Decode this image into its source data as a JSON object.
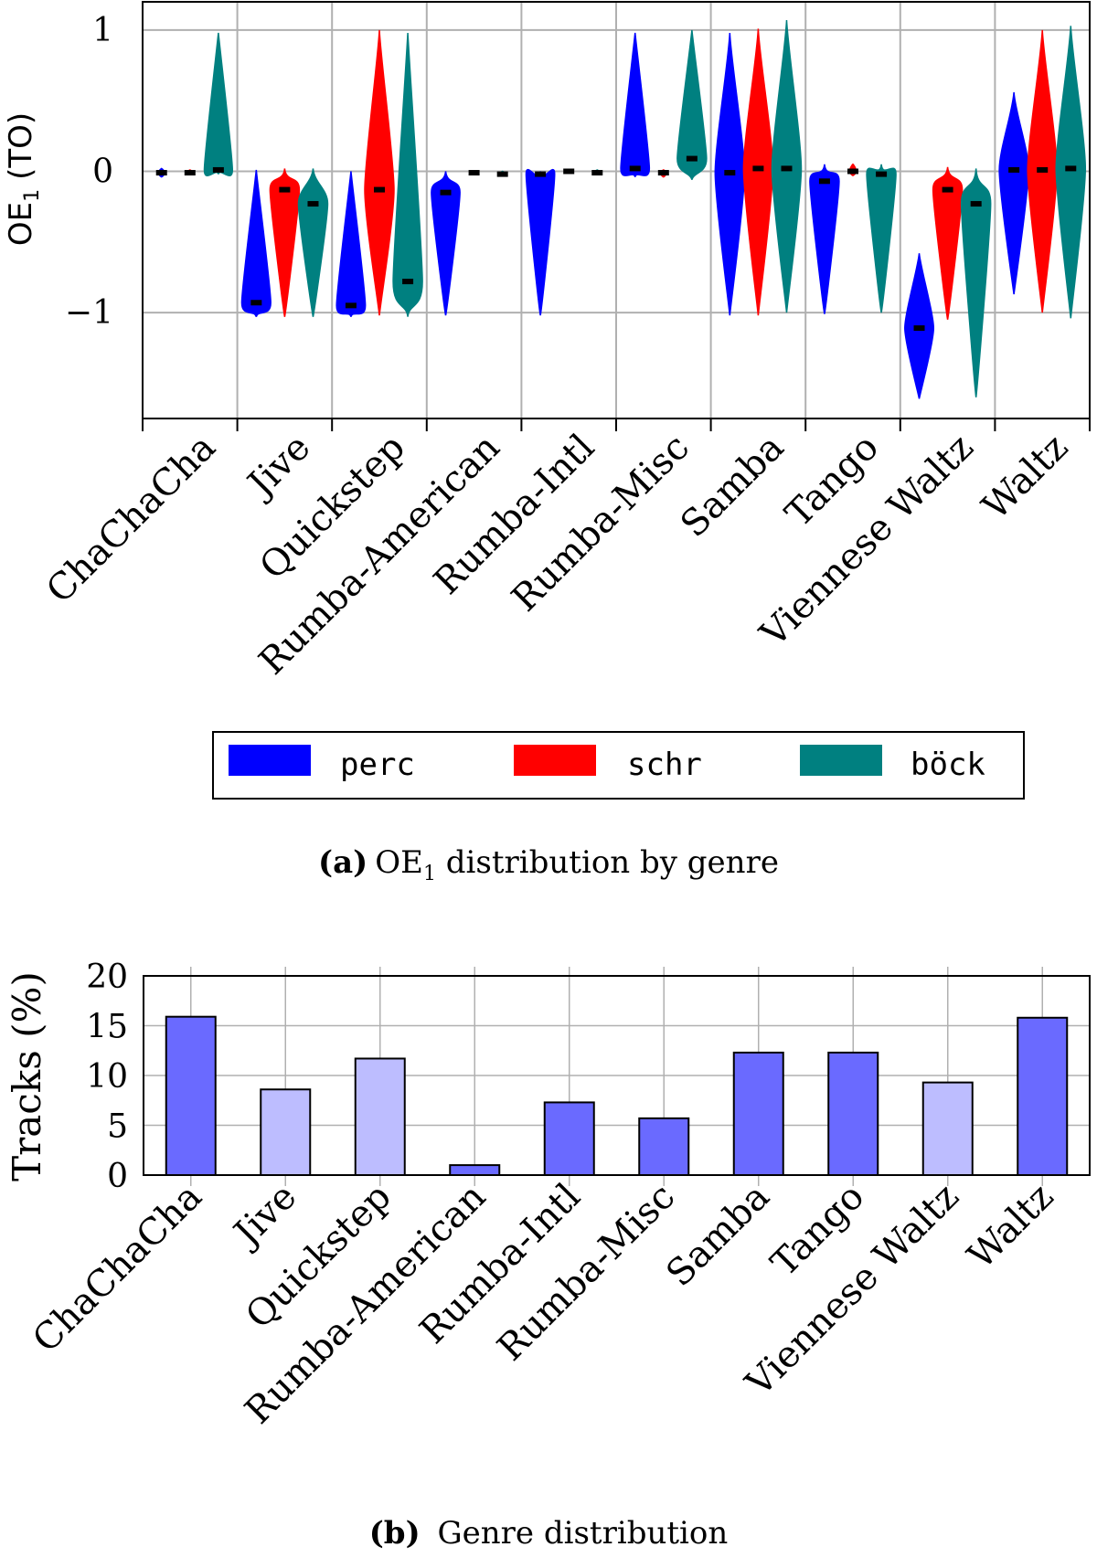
{
  "figure_a": {
    "label": "(a)",
    "caption_prefix": "OE",
    "caption_sub": "1",
    "caption_text": "distribution by genre"
  },
  "figure_b": {
    "label": "(b)",
    "caption_text": "Genre distribution"
  },
  "colors": {
    "perc": "#0000ff",
    "schr": "#ff0000",
    "bock": "#008080",
    "bar_dark": "#6a6aff",
    "bar_light": "#bdbdff"
  },
  "chart_data": [
    {
      "type": "violin",
      "title": "",
      "ylabel_main": "OE",
      "ylabel_sub": "1",
      "ylabel_suffix": "(TO)",
      "xlabel": "",
      "ylim": [
        -1.75,
        1.2
      ],
      "yticks": [
        1,
        0,
        -1
      ],
      "ytick_labels": [
        "1",
        "0",
        "−1"
      ],
      "grid": true,
      "legend_position": "bottom",
      "categories": [
        "ChaChaCha",
        "Jive",
        "Quickstep",
        "Rumba-American",
        "Rumba-Intl",
        "Rumba-Misc",
        "Samba",
        "Tango",
        "Viennese Waltz",
        "Waltz"
      ],
      "series": [
        {
          "name": "perc",
          "color": "#0000ff",
          "medians": [
            -0.01,
            -0.93,
            -0.95,
            -0.15,
            -0.02,
            0.02,
            -0.01,
            -0.07,
            -1.11,
            0.01
          ],
          "ranges": [
            [
              -0.04,
              0.02
            ],
            [
              -1.03,
              0.01
            ],
            [
              -1.03,
              0.0
            ],
            [
              -1.02,
              0.0
            ],
            [
              -1.02,
              0.0
            ],
            [
              -0.04,
              0.98
            ],
            [
              -1.02,
              0.98
            ],
            [
              -1.01,
              0.05
            ],
            [
              -1.61,
              -0.58
            ],
            [
              -0.87,
              0.56
            ]
          ]
        },
        {
          "name": "schr",
          "color": "#ff0000",
          "medians": [
            -0.01,
            -0.13,
            -0.13,
            -0.01,
            0.0,
            -0.01,
            0.02,
            0.0,
            -0.13,
            0.01
          ],
          "ranges": [
            [
              -0.02,
              0.01
            ],
            [
              -1.03,
              0.02
            ],
            [
              -1.02,
              1.0
            ],
            [
              -0.02,
              0.0
            ],
            [
              -0.01,
              0.01
            ],
            [
              -0.04,
              0.01
            ],
            [
              -1.02,
              1.01
            ],
            [
              -0.03,
              0.05
            ],
            [
              -1.05,
              0.03
            ],
            [
              -1.0,
              1.0
            ]
          ]
        },
        {
          "name": "böck",
          "color": "#008080",
          "medians": [
            0.01,
            -0.23,
            -0.78,
            -0.02,
            -0.01,
            0.09,
            0.02,
            -0.02,
            -0.23,
            0.02
          ],
          "ranges": [
            [
              -0.02,
              0.98
            ],
            [
              -1.03,
              0.02
            ],
            [
              -1.03,
              0.98
            ],
            [
              -0.03,
              0.0
            ],
            [
              -0.01,
              0.01
            ],
            [
              -0.06,
              1.0
            ],
            [
              -1.0,
              1.07
            ],
            [
              -1.0,
              0.05
            ],
            [
              -1.6,
              0.02
            ],
            [
              -1.04,
              1.03
            ]
          ]
        }
      ]
    },
    {
      "type": "bar",
      "title": "",
      "ylabel": "Tracks (%)",
      "xlabel": "",
      "ylim": [
        0,
        20
      ],
      "yticks": [
        0,
        5,
        10,
        15,
        20
      ],
      "grid": true,
      "categories": [
        "ChaChaCha",
        "Jive",
        "Quickstep",
        "Rumba-American",
        "Rumba-Intl",
        "Rumba-Misc",
        "Samba",
        "Tango",
        "Viennese Waltz",
        "Waltz"
      ],
      "values": [
        15.9,
        8.6,
        11.7,
        1.0,
        7.3,
        5.7,
        12.3,
        12.3,
        9.3,
        15.8
      ],
      "shade": [
        "dark",
        "light",
        "light",
        "dark",
        "dark",
        "dark",
        "dark",
        "dark",
        "light",
        "dark"
      ]
    }
  ]
}
